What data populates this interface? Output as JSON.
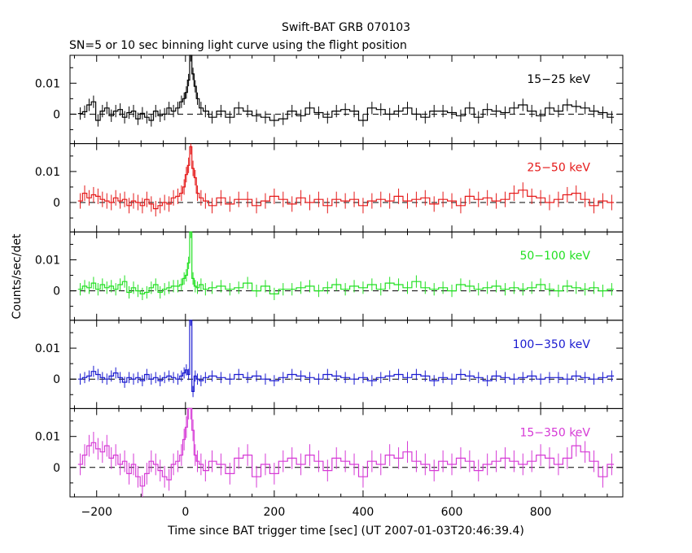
{
  "title": "Swift-BAT GRB 070103",
  "subtitle": "SN=5 or 10 sec binning light curve using the flight position",
  "ylabel": "Counts/sec/det",
  "xlabel": "Time since BAT trigger time [sec] (UT 2007-01-03T20:46:39.4)",
  "chart_data": {
    "type": "line",
    "x_range": [
      -260,
      985
    ],
    "y_range": [
      -0.0095,
      0.019
    ],
    "x_ticks": [
      -200,
      0,
      200,
      400,
      600,
      800
    ],
    "x_tick_labels": [
      "−200",
      "0",
      "200",
      "400",
      "600",
      "800"
    ],
    "y_ticks": [
      0,
      0.01
    ],
    "y_tick_labels": [
      "0",
      "0.01"
    ],
    "grid": false,
    "step": true,
    "error_bars": true,
    "panels": [
      {
        "name": "15–25 keV",
        "label": "15−25 keV",
        "color": "#000000",
        "x": [
          -237,
          -227,
          -217,
          -207,
          -197,
          -187,
          -177,
          -167,
          -157,
          -147,
          -137,
          -127,
          -117,
          -107,
          -97,
          -87,
          -77,
          -67,
          -57,
          -47,
          -37,
          -27,
          -17,
          -9,
          -3,
          2,
          7,
          12,
          17,
          22,
          27,
          35,
          45,
          60,
          80,
          100,
          120,
          140,
          160,
          180,
          200,
          220,
          240,
          260,
          280,
          300,
          320,
          340,
          360,
          380,
          400,
          420,
          440,
          460,
          480,
          500,
          520,
          540,
          560,
          580,
          600,
          620,
          640,
          660,
          680,
          700,
          720,
          740,
          760,
          780,
          800,
          820,
          840,
          860,
          880,
          900,
          920,
          940,
          960
        ],
        "y": [
          0.0002,
          0.0008,
          0.003,
          0.004,
          -0.002,
          0.001,
          0.002,
          -0.0005,
          0.001,
          0.0015,
          -0.001,
          0.0005,
          0.001,
          -0.0015,
          0.0003,
          -0.001,
          -0.002,
          0.001,
          -0.0005,
          0,
          0.002,
          0.001,
          0.002,
          0.004,
          0.005,
          0.007,
          0.011,
          0.019,
          0.013,
          0.009,
          0.005,
          0.002,
          0.001,
          -0.001,
          0.001,
          -0.001,
          0.002,
          0.001,
          -0.0005,
          -0.001,
          -0.002,
          -0.0015,
          0.001,
          -0.0005,
          0.002,
          0.0005,
          -0.001,
          0.001,
          0.0015,
          0.001,
          -0.002,
          0.002,
          0.0015,
          0,
          0.001,
          0.002,
          0,
          -0.001,
          0.001,
          0.001,
          0.0005,
          -0.0005,
          0.002,
          -0.001,
          0.0015,
          0.001,
          0.0005,
          0.002,
          0.003,
          0.001,
          -0.0005,
          0.002,
          0.001,
          0.003,
          0.0025,
          0.002,
          0.001,
          0.0005,
          -0.001
        ],
        "err": 0.002
      },
      {
        "name": "25–50 keV",
        "label": "25−50 keV",
        "color": "#e51a1a",
        "x": [
          -237,
          -227,
          -217,
          -207,
          -197,
          -187,
          -177,
          -167,
          -157,
          -147,
          -137,
          -127,
          -117,
          -107,
          -97,
          -87,
          -77,
          -67,
          -57,
          -47,
          -37,
          -27,
          -17,
          -9,
          -3,
          2,
          7,
          12,
          17,
          22,
          27,
          35,
          45,
          60,
          80,
          100,
          120,
          140,
          160,
          180,
          200,
          220,
          240,
          260,
          280,
          300,
          320,
          340,
          360,
          380,
          400,
          420,
          440,
          460,
          480,
          500,
          520,
          540,
          560,
          580,
          600,
          620,
          640,
          660,
          680,
          700,
          720,
          740,
          760,
          780,
          800,
          820,
          840,
          860,
          880,
          900,
          920,
          940,
          960
        ],
        "y": [
          0.0005,
          0.003,
          0.0015,
          0.0025,
          0.002,
          0.001,
          0.0005,
          0,
          0.0015,
          0.0005,
          0.001,
          -0.001,
          0.0005,
          0,
          -0.001,
          0.001,
          -0.0005,
          -0.002,
          -0.001,
          0,
          -0.0005,
          0.0015,
          0.002,
          0.003,
          0.005,
          0.009,
          0.012,
          0.018,
          0.011,
          0.008,
          0.003,
          0.0015,
          0.0005,
          -0.001,
          0.0015,
          -0.0005,
          0.001,
          0.001,
          -0.001,
          0.0005,
          0.002,
          0.001,
          -0.0005,
          0.0015,
          0,
          0.001,
          -0.001,
          0.001,
          0.0005,
          0.001,
          -0.001,
          0.0005,
          0.001,
          0.0005,
          0.002,
          0.0005,
          0.001,
          0.0015,
          -0.0005,
          0.001,
          0.0005,
          -0.001,
          0.002,
          0.001,
          0.0015,
          0.0005,
          0.001,
          0.003,
          0.004,
          0.002,
          0.0015,
          0,
          0.001,
          0.0025,
          0.003,
          0.001,
          -0.001,
          0.0005,
          0
        ],
        "err": 0.0025
      },
      {
        "name": "50–100 keV",
        "label": "50−100 keV",
        "color": "#22e022",
        "x": [
          -237,
          -227,
          -217,
          -207,
          -197,
          -187,
          -177,
          -167,
          -157,
          -147,
          -137,
          -127,
          -117,
          -107,
          -97,
          -87,
          -77,
          -67,
          -57,
          -47,
          -37,
          -27,
          -17,
          -9,
          -3,
          2,
          7,
          12,
          17,
          22,
          27,
          35,
          45,
          60,
          80,
          100,
          120,
          140,
          160,
          180,
          200,
          220,
          240,
          260,
          280,
          300,
          320,
          340,
          360,
          380,
          400,
          420,
          440,
          460,
          480,
          500,
          520,
          540,
          560,
          580,
          600,
          620,
          640,
          660,
          680,
          700,
          720,
          740,
          760,
          780,
          800,
          820,
          840,
          860,
          880,
          900,
          920,
          940,
          960
        ],
        "y": [
          0.0005,
          0.0015,
          0.001,
          0.0025,
          0.0005,
          0.002,
          0.001,
          0.0015,
          0.0005,
          0.002,
          0.003,
          -0.0005,
          0.001,
          0,
          -0.001,
          -0.0005,
          0.001,
          0.002,
          -0.0005,
          0.0005,
          0.001,
          0.0015,
          0.0015,
          0.002,
          0.004,
          0.005,
          0.009,
          0.019,
          0.004,
          0.0015,
          0.001,
          0.002,
          0.0005,
          0.001,
          0.0015,
          0.0005,
          0.001,
          0.0025,
          0,
          0.0015,
          -0.001,
          0.0005,
          0.0005,
          0.001,
          0.0015,
          0,
          0.001,
          0.002,
          0.0005,
          0.0015,
          0.001,
          0.002,
          0.0005,
          0.0025,
          0.002,
          0.001,
          0.003,
          0.001,
          0.0005,
          0.001,
          0,
          0.002,
          0.0015,
          0.0005,
          0.001,
          0.0015,
          0.0005,
          0.001,
          0.0005,
          0.001,
          0.002,
          0.0005,
          0,
          0.0015,
          0.001,
          0.0005,
          0.001,
          0,
          0.0005
        ],
        "err": 0.002
      },
      {
        "name": "100–350 keV",
        "label": "100−350 keV",
        "color": "#1a1ad0",
        "x": [
          -237,
          -227,
          -217,
          -207,
          -197,
          -187,
          -177,
          -167,
          -157,
          -147,
          -137,
          -127,
          -117,
          -107,
          -97,
          -87,
          -77,
          -67,
          -57,
          -47,
          -37,
          -27,
          -17,
          -9,
          -3,
          2,
          7,
          12,
          17,
          22,
          27,
          35,
          45,
          60,
          80,
          100,
          120,
          140,
          160,
          180,
          200,
          220,
          240,
          260,
          280,
          300,
          320,
          340,
          360,
          380,
          400,
          420,
          440,
          460,
          480,
          500,
          520,
          540,
          560,
          580,
          600,
          620,
          640,
          660,
          680,
          700,
          720,
          740,
          760,
          780,
          800,
          820,
          840,
          860,
          880,
          900,
          920,
          940,
          960
        ],
        "y": [
          0,
          0.0005,
          0.001,
          0.0025,
          0.0015,
          0.0005,
          0,
          0.001,
          0.002,
          0.0005,
          -0.001,
          0.0005,
          0,
          0.0005,
          -0.0005,
          0.0015,
          0,
          0.0005,
          -0.0005,
          0.0005,
          0.001,
          0.0005,
          0,
          0.001,
          0.002,
          0.003,
          0.0015,
          0.019,
          -0.004,
          0.001,
          0,
          -0.0005,
          0.0005,
          0.001,
          0.0005,
          0,
          0.0015,
          0.0005,
          0.001,
          0,
          -0.0005,
          0.0005,
          0.0015,
          0.001,
          0.0005,
          0,
          0.0015,
          0.001,
          0.0005,
          0,
          0.0005,
          -0.0005,
          0.0005,
          0.001,
          0.0015,
          0.0005,
          0.0015,
          0.001,
          -0.0005,
          0.0005,
          0,
          0.0015,
          0.001,
          0.0005,
          -0.0005,
          0.001,
          0.0005,
          0,
          0.0005,
          0.001,
          0,
          0.0005,
          0.0005,
          0,
          0.001,
          0.0005,
          0,
          0.0005,
          0.001
        ],
        "err": 0.0018
      },
      {
        "name": "15–350 keV",
        "label": "15−350 keV",
        "color": "#d63ad6",
        "x": [
          -237,
          -227,
          -217,
          -207,
          -197,
          -187,
          -177,
          -167,
          -157,
          -147,
          -137,
          -127,
          -117,
          -107,
          -97,
          -87,
          -77,
          -67,
          -57,
          -47,
          -37,
          -27,
          -17,
          -9,
          -3,
          2,
          7,
          12,
          17,
          22,
          27,
          35,
          45,
          60,
          80,
          100,
          120,
          140,
          160,
          180,
          200,
          220,
          240,
          260,
          280,
          300,
          320,
          340,
          360,
          380,
          400,
          420,
          440,
          460,
          480,
          500,
          520,
          540,
          560,
          580,
          600,
          620,
          640,
          660,
          680,
          700,
          720,
          740,
          760,
          780,
          800,
          820,
          840,
          860,
          880,
          900,
          920,
          940,
          960
        ],
        "y": [
          0.001,
          0.004,
          0.007,
          0.008,
          0.006,
          0.005,
          0.007,
          0.003,
          0.004,
          0.001,
          0.002,
          -0.002,
          0.001,
          -0.003,
          -0.006,
          -0.002,
          0.002,
          0.001,
          -0.001,
          -0.003,
          -0.004,
          0.001,
          0.002,
          0.004,
          0.009,
          0.013,
          0.019,
          0.019,
          0.012,
          0.004,
          0.002,
          0.001,
          -0.001,
          0.002,
          0.001,
          -0.002,
          0.003,
          0.004,
          -0.003,
          0.001,
          -0.002,
          0.002,
          0.003,
          0.001,
          0.004,
          0.002,
          -0.001,
          0.003,
          0.002,
          0.001,
          -0.003,
          0.002,
          0.001,
          0.004,
          0.003,
          0.005,
          0.002,
          0.001,
          -0.001,
          0.002,
          0.001,
          0.003,
          0.002,
          -0.001,
          0.001,
          0.002,
          0.003,
          0.002,
          0.001,
          0.002,
          0.004,
          0.003,
          0.001,
          0.003,
          0.007,
          0.005,
          0.002,
          -0.003,
          0.001
        ],
        "err": 0.0035
      }
    ]
  }
}
